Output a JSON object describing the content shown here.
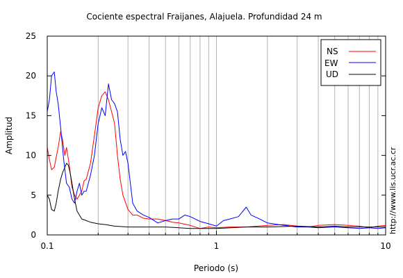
{
  "chart_data": {
    "type": "line",
    "title": "Cociente espectral Fraijanes, Alajuela. Profundidad 24 m",
    "xlabel": "Periodo (s)",
    "ylabel": "Amplitud",
    "xscale": "log",
    "xlim": [
      0.1,
      10
    ],
    "ylim": [
      0,
      25
    ],
    "xticks": [
      0.1,
      1,
      10
    ],
    "xtick_labels": [
      "0.1",
      "1",
      "10"
    ],
    "yticks": [
      0,
      5,
      10,
      15,
      20,
      25
    ],
    "ytick_labels": [
      "0",
      "5",
      "10",
      "15",
      "20",
      "25"
    ],
    "grid": "vertical lines at each log decade subdivision",
    "legend_position": "top-right",
    "annotation": "http://www.lis.ucr.ac.cr",
    "series": [
      {
        "name": "NS",
        "color": "#ff0000",
        "x": [
          0.1,
          0.103,
          0.106,
          0.11,
          0.113,
          0.116,
          0.12,
          0.123,
          0.127,
          0.13,
          0.135,
          0.14,
          0.145,
          0.15,
          0.155,
          0.16,
          0.165,
          0.17,
          0.18,
          0.19,
          0.2,
          0.21,
          0.22,
          0.23,
          0.24,
          0.25,
          0.26,
          0.27,
          0.28,
          0.3,
          0.32,
          0.34,
          0.37,
          0.4,
          0.45,
          0.5,
          0.55,
          0.6,
          0.7,
          0.8,
          0.9,
          1.0,
          1.2,
          1.5,
          2.0,
          2.5,
          3.0,
          3.5,
          4.0,
          5.0,
          6.0,
          7.0,
          8.0,
          9.0,
          10.0
        ],
        "y": [
          11.0,
          9.5,
          8.2,
          8.5,
          9.8,
          11.0,
          13.0,
          12.0,
          10.0,
          11.0,
          8.8,
          6.0,
          5.0,
          4.5,
          5.0,
          5.5,
          6.8,
          7.0,
          9.0,
          12.5,
          16.0,
          17.5,
          18.0,
          17.0,
          15.5,
          14.0,
          10.0,
          7.0,
          5.0,
          3.2,
          2.5,
          2.5,
          2.1,
          2.0,
          2.0,
          1.8,
          1.6,
          1.5,
          1.2,
          0.8,
          1.0,
          0.9,
          1.0,
          1.0,
          1.2,
          1.3,
          1.1,
          1.0,
          1.2,
          1.3,
          1.2,
          1.1,
          0.9,
          1.1,
          1.2
        ]
      },
      {
        "name": "EW",
        "color": "#0000ff",
        "x": [
          0.1,
          0.103,
          0.106,
          0.11,
          0.113,
          0.116,
          0.12,
          0.125,
          0.13,
          0.135,
          0.14,
          0.145,
          0.15,
          0.155,
          0.16,
          0.165,
          0.17,
          0.18,
          0.19,
          0.2,
          0.21,
          0.22,
          0.23,
          0.24,
          0.25,
          0.26,
          0.27,
          0.28,
          0.29,
          0.3,
          0.32,
          0.34,
          0.37,
          0.4,
          0.45,
          0.5,
          0.55,
          0.6,
          0.65,
          0.7,
          0.8,
          0.9,
          1.0,
          1.1,
          1.2,
          1.35,
          1.5,
          1.6,
          1.8,
          2.0,
          2.5,
          3.0,
          3.5,
          4.0,
          5.0,
          6.0,
          7.0,
          8.0,
          9.0,
          10.0
        ],
        "y": [
          15.5,
          17.0,
          20.0,
          20.5,
          18.0,
          16.5,
          13.5,
          9.5,
          6.5,
          6.0,
          4.5,
          4.0,
          5.5,
          6.5,
          5.0,
          5.5,
          5.5,
          7.5,
          10.0,
          14.0,
          16.0,
          15.0,
          19.0,
          17.0,
          16.5,
          15.5,
          12.0,
          10.0,
          10.5,
          9.0,
          4.0,
          3.0,
          2.5,
          2.2,
          1.5,
          1.8,
          2.0,
          2.0,
          2.5,
          2.3,
          1.7,
          1.4,
          1.1,
          1.8,
          2.0,
          2.3,
          3.5,
          2.5,
          2.0,
          1.5,
          1.2,
          1.0,
          1.0,
          0.9,
          1.0,
          0.9,
          0.8,
          0.9,
          0.8,
          0.9
        ]
      },
      {
        "name": "UD",
        "color": "#000000",
        "x": [
          0.1,
          0.103,
          0.106,
          0.11,
          0.113,
          0.116,
          0.12,
          0.123,
          0.127,
          0.13,
          0.133,
          0.136,
          0.14,
          0.145,
          0.15,
          0.16,
          0.17,
          0.18,
          0.2,
          0.22,
          0.25,
          0.3,
          0.35,
          0.4,
          0.5,
          0.6,
          0.7,
          0.8,
          1.0,
          1.5,
          2.0,
          3.0,
          4.0,
          5.0,
          6.0,
          7.0,
          8.0,
          9.0,
          10.0
        ],
        "y": [
          5.0,
          4.5,
          3.2,
          3.0,
          4.0,
          5.5,
          7.0,
          7.8,
          8.5,
          9.0,
          8.8,
          8.0,
          6.5,
          4.5,
          3.0,
          2.0,
          1.8,
          1.6,
          1.4,
          1.3,
          1.1,
          1.0,
          1.0,
          1.0,
          1.0,
          0.9,
          0.8,
          0.8,
          0.8,
          1.0,
          1.0,
          1.1,
          1.0,
          1.1,
          1.0,
          1.0,
          1.0,
          1.0,
          1.0
        ]
      }
    ]
  }
}
